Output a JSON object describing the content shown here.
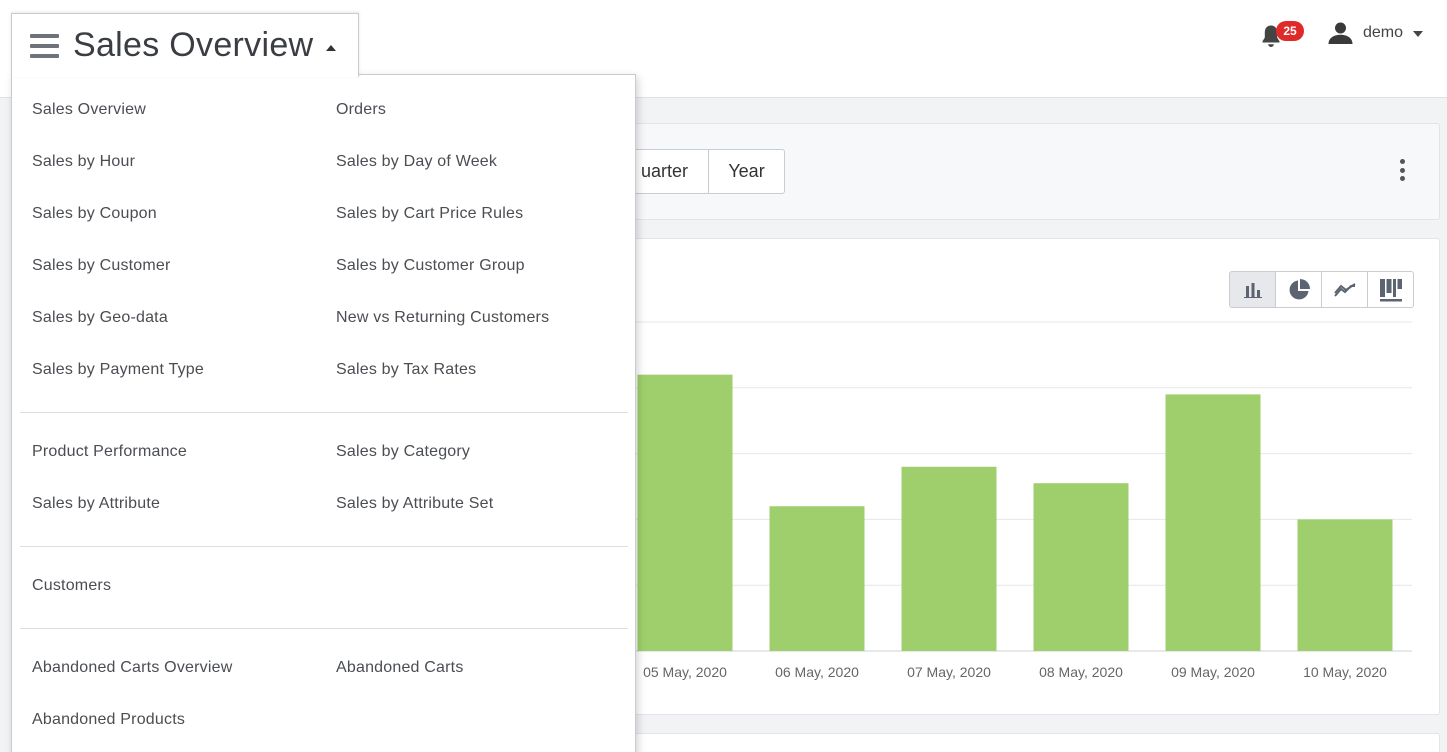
{
  "header": {
    "title": "Sales Overview",
    "notifications": {
      "count": "25"
    },
    "user": {
      "name": "demo"
    }
  },
  "menu": {
    "groups": [
      {
        "rows": [
          [
            "Sales Overview",
            "Orders"
          ],
          [
            "Sales by Hour",
            "Sales by Day of Week"
          ],
          [
            "Sales by Coupon",
            "Sales by Cart Price Rules"
          ],
          [
            "Sales by Customer",
            "Sales by Customer Group"
          ],
          [
            "Sales by Geo-data",
            "New vs Returning Customers"
          ],
          [
            "Sales by Payment Type",
            "Sales by Tax Rates"
          ]
        ]
      },
      {
        "rows": [
          [
            "Product Performance",
            "Sales by Category"
          ],
          [
            "Sales by Attribute",
            "Sales by Attribute Set"
          ]
        ]
      },
      {
        "rows": [
          [
            "Customers"
          ]
        ]
      },
      {
        "rows": [
          [
            "Abandoned Carts Overview",
            "Abandoned Carts"
          ],
          [
            "Abandoned Products"
          ]
        ]
      }
    ]
  },
  "toolbar": {
    "period_visible_partial": "uarter",
    "period_year": "Year"
  },
  "chart_types": [
    "bar-chart-icon",
    "pie-chart-icon",
    "line-chart-icon",
    "table-chart-icon"
  ],
  "colors": {
    "bar": "#9fcf6c",
    "badge": "#e02a2a"
  },
  "chart_data": {
    "type": "bar",
    "categories": [
      "05 May, 2020",
      "06 May, 2020",
      "07 May, 2020",
      "08 May, 2020",
      "09 May, 2020",
      "10 May, 2020"
    ],
    "values": [
      4.2,
      2.2,
      2.8,
      2.55,
      3.9,
      2.0
    ],
    "ylim": [
      0,
      5
    ],
    "grid": true,
    "title": "",
    "xlabel": "",
    "ylabel": ""
  }
}
